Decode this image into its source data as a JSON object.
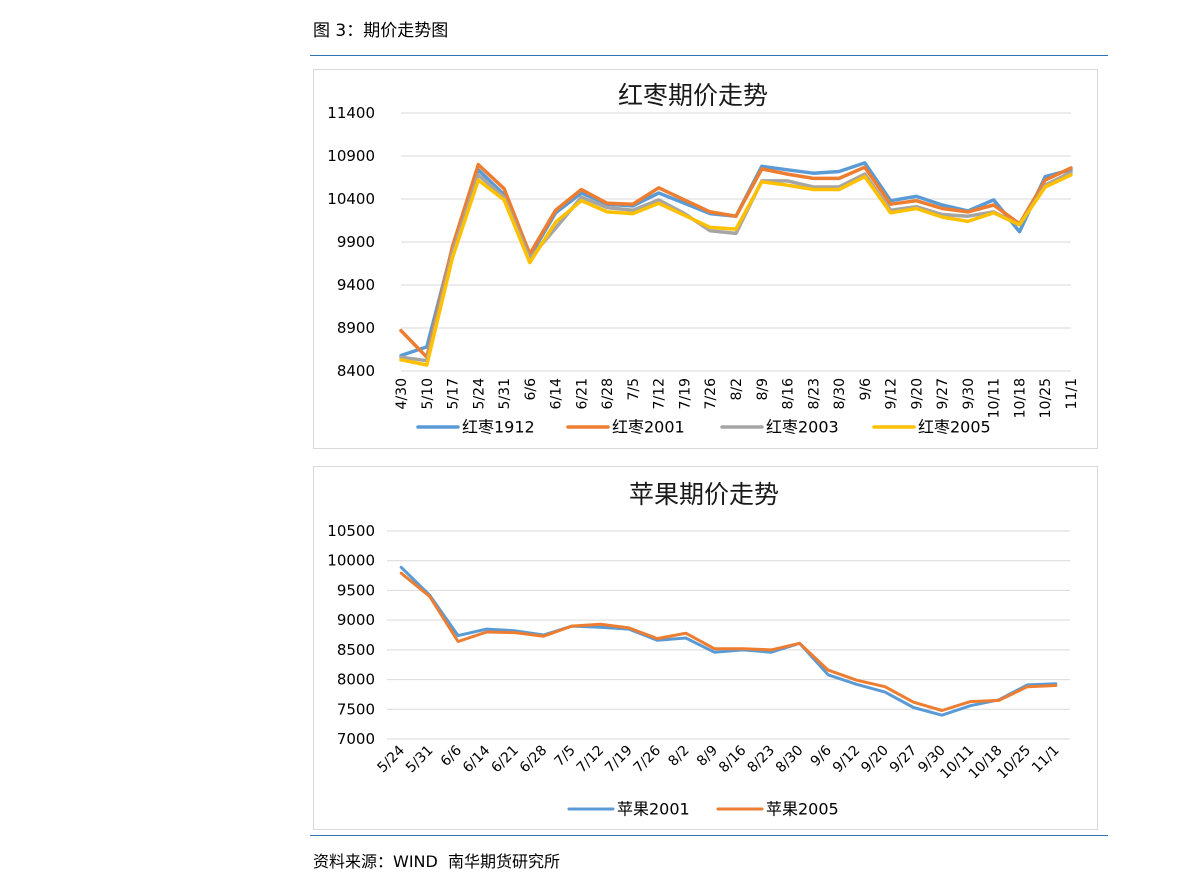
{
  "caption": "图 3：期价走势图",
  "source": "资料来源：WIND  南华期货研究所",
  "chart_data": [
    {
      "type": "line",
      "title": "红枣期价走势",
      "categories": [
        "4/30",
        "5/10",
        "5/17",
        "5/24",
        "5/31",
        "6/6",
        "6/14",
        "6/21",
        "6/28",
        "7/5",
        "7/12",
        "7/19",
        "7/26",
        "8/2",
        "8/9",
        "8/16",
        "8/23",
        "8/30",
        "9/6",
        "9/12",
        "9/20",
        "9/27",
        "9/30",
        "10/11",
        "10/18",
        "10/25",
        "11/1"
      ],
      "ylim": [
        8400,
        11400
      ],
      "yticks": [
        8400,
        8900,
        9400,
        9900,
        10400,
        10900,
        11400
      ],
      "grid": true,
      "legend": "bottom",
      "series": [
        {
          "name": "红枣1912",
          "color": "#5b9bd5",
          "values": [
            8580,
            8680,
            9830,
            10740,
            10450,
            9730,
            10240,
            10470,
            10340,
            10320,
            10470,
            10350,
            10230,
            10200,
            10780,
            10740,
            10700,
            10720,
            10820,
            10380,
            10430,
            10330,
            10260,
            10390,
            10020,
            10660,
            10740
          ]
        },
        {
          "name": "红枣2001",
          "color": "#ed7d31",
          "values": [
            8870,
            8560,
            9850,
            10800,
            10520,
            9760,
            10270,
            10510,
            10350,
            10340,
            10530,
            10390,
            10250,
            10200,
            10750,
            10690,
            10640,
            10640,
            10770,
            10340,
            10380,
            10290,
            10250,
            10330,
            10110,
            10620,
            10760
          ]
        },
        {
          "name": "红枣2003",
          "color": "#a5a5a5",
          "values": [
            8560,
            8520,
            9780,
            10680,
            10420,
            9710,
            10060,
            10420,
            10300,
            10270,
            10390,
            10230,
            10030,
            10000,
            10610,
            10610,
            10540,
            10540,
            10690,
            10270,
            10310,
            10220,
            10200,
            10250,
            10100,
            10560,
            10710
          ]
        },
        {
          "name": "红枣2005",
          "color": "#ffc000",
          "values": [
            8530,
            8470,
            9720,
            10620,
            10390,
            9660,
            10130,
            10380,
            10250,
            10230,
            10350,
            10210,
            10070,
            10050,
            10600,
            10560,
            10510,
            10510,
            10660,
            10240,
            10290,
            10190,
            10140,
            10240,
            10100,
            10540,
            10680
          ]
        }
      ]
    },
    {
      "type": "line",
      "title": "苹果期价走势",
      "categories": [
        "5/24",
        "5/31",
        "6/6",
        "6/14",
        "6/21",
        "6/28",
        "7/5",
        "7/12",
        "7/19",
        "7/26",
        "8/2",
        "8/9",
        "8/16",
        "8/23",
        "8/30",
        "9/6",
        "9/12",
        "9/20",
        "9/27",
        "9/30",
        "10/11",
        "10/18",
        "10/25",
        "11/1"
      ],
      "ylim": [
        7000,
        10500
      ],
      "yticks": [
        7000,
        7500,
        8000,
        8500,
        9000,
        9500,
        10000,
        10500
      ],
      "grid": true,
      "legend": "bottom",
      "series": [
        {
          "name": "苹果2001",
          "color": "#5b9bd5",
          "values": [
            9890,
            9420,
            8740,
            8850,
            8820,
            8750,
            8900,
            8880,
            8850,
            8660,
            8700,
            8460,
            8500,
            8460,
            8610,
            8080,
            7920,
            7790,
            7530,
            7400,
            7560,
            7660,
            7910,
            7930
          ]
        },
        {
          "name": "苹果2005",
          "color": "#ed7d31",
          "values": [
            9790,
            9400,
            8640,
            8800,
            8790,
            8730,
            8900,
            8930,
            8870,
            8690,
            8780,
            8520,
            8520,
            8500,
            8610,
            8160,
            7990,
            7880,
            7620,
            7480,
            7630,
            7650,
            7880,
            7900
          ]
        }
      ]
    }
  ]
}
